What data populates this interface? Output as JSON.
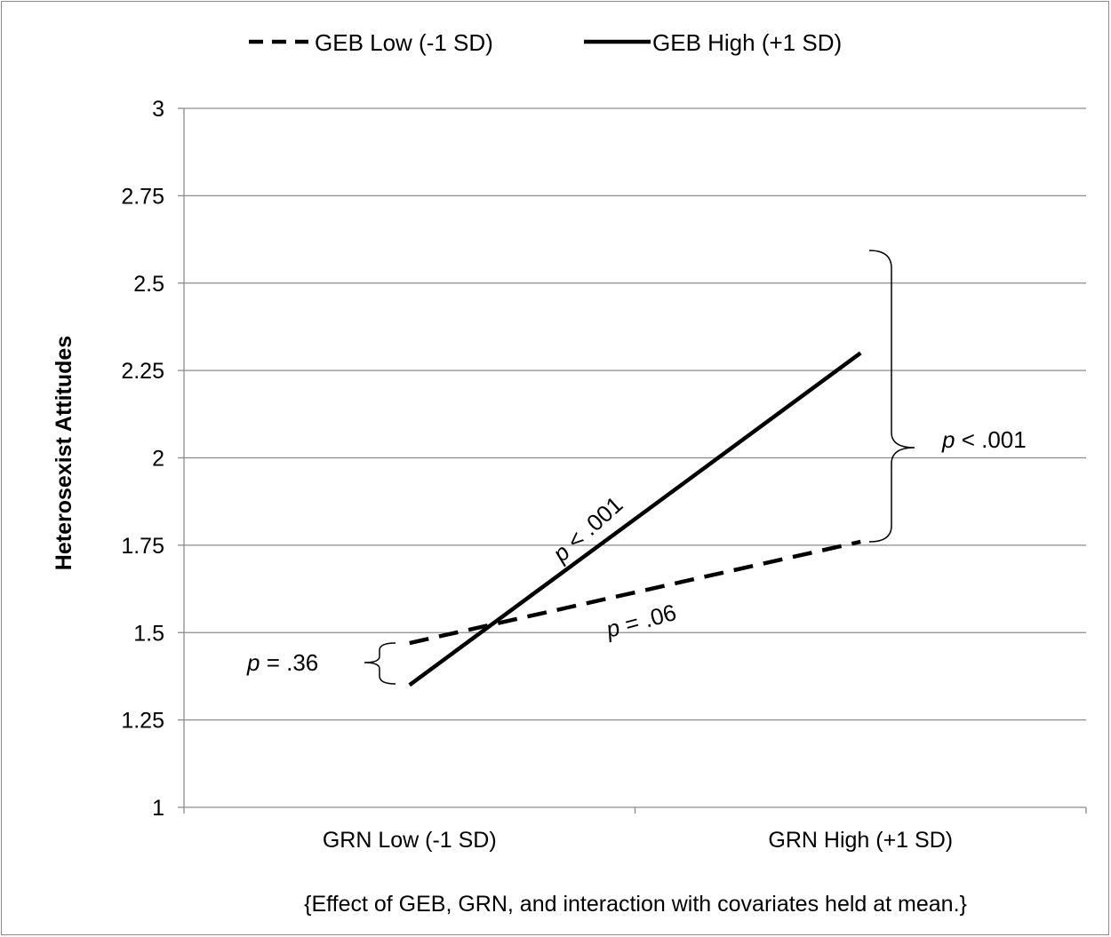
{
  "chart_data": {
    "type": "line",
    "title": "",
    "xlabel": "{Effect of GEB, GRN, and interaction with covariates held at mean.}",
    "ylabel": "Heterosexist Attitudes",
    "categories": [
      "GRN Low (-1 SD)",
      "GRN High (+1 SD)"
    ],
    "ylim": [
      1,
      3
    ],
    "yticks": [
      "1",
      "1.25",
      "1.5",
      "1.75",
      "2",
      "2.25",
      "2.5",
      "2.75",
      "3"
    ],
    "grid": true,
    "legend_position": "top",
    "series": [
      {
        "name": "GEB Low (-1 SD)",
        "style": "dashed",
        "values": [
          1.47,
          1.76
        ]
      },
      {
        "name": "GEB High (+1 SD)",
        "style": "solid",
        "values": [
          1.35,
          2.3
        ]
      }
    ],
    "annotations": {
      "slope_high": {
        "p": "p",
        "text": " < .001"
      },
      "slope_low": {
        "p": "p",
        "text": " = .06"
      },
      "diff_low": {
        "p": "p",
        "text": " = .36"
      },
      "diff_high": {
        "p": "p",
        "text": " < .001"
      }
    }
  },
  "colors": {
    "line": "#000000",
    "grid": "#8c8c8c",
    "background": "#ffffff"
  }
}
